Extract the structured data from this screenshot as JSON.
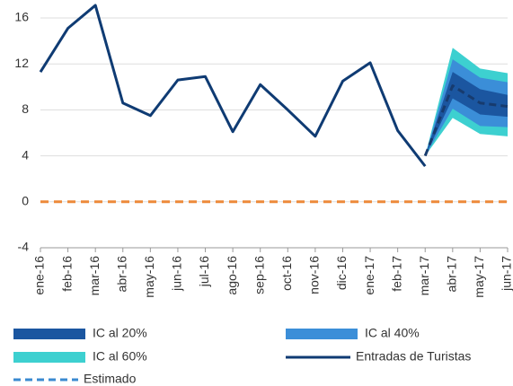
{
  "chart_data": {
    "type": "line",
    "categories": [
      "ene-16",
      "feb-16",
      "mar-16",
      "abr-16",
      "may-16",
      "jun-16",
      "jul-16",
      "ago-16",
      "sep-16",
      "oct-16",
      "nov-16",
      "dic-16",
      "ene-17",
      "feb-17",
      "mar-17",
      "abr-17",
      "may-17",
      "jun-17"
    ],
    "bands": [
      {
        "name": "IC al 60%",
        "color": "#3dd0d0",
        "lower": [
          null,
          null,
          null,
          null,
          null,
          null,
          null,
          null,
          null,
          null,
          null,
          null,
          null,
          null,
          4.0,
          7.3,
          5.9,
          5.7
        ],
        "upper": [
          null,
          null,
          null,
          null,
          null,
          null,
          null,
          null,
          null,
          null,
          null,
          null,
          null,
          null,
          4.0,
          13.4,
          11.6,
          11.2
        ]
      },
      {
        "name": "IC al 40%",
        "color": "#3b8ed8",
        "lower": [
          null,
          null,
          null,
          null,
          null,
          null,
          null,
          null,
          null,
          null,
          null,
          null,
          null,
          null,
          4.0,
          8.1,
          6.6,
          6.5
        ],
        "upper": [
          null,
          null,
          null,
          null,
          null,
          null,
          null,
          null,
          null,
          null,
          null,
          null,
          null,
          null,
          4.0,
          12.4,
          10.8,
          10.4
        ]
      },
      {
        "name": "IC al 20%",
        "color": "#1b56a0",
        "lower": [
          null,
          null,
          null,
          null,
          null,
          null,
          null,
          null,
          null,
          null,
          null,
          null,
          null,
          null,
          4.0,
          9.0,
          7.6,
          7.4
        ],
        "upper": [
          null,
          null,
          null,
          null,
          null,
          null,
          null,
          null,
          null,
          null,
          null,
          null,
          null,
          null,
          4.0,
          11.3,
          9.8,
          9.3
        ]
      }
    ],
    "series": [
      {
        "name": "Entradas de Turistas",
        "color": "#0f3b73",
        "dashed": false,
        "values": [
          11.3,
          15.1,
          17.1,
          8.6,
          7.5,
          10.6,
          10.9,
          6.1,
          10.2,
          8.0,
          5.7,
          10.5,
          12.1,
          6.2,
          3.1,
          null,
          null,
          null
        ]
      },
      {
        "name": "Estimado",
        "color": "#173b6e",
        "dashed": true,
        "values": [
          null,
          null,
          null,
          null,
          null,
          null,
          null,
          null,
          null,
          null,
          null,
          null,
          null,
          null,
          4.0,
          10.1,
          8.6,
          8.3
        ]
      }
    ],
    "hlines": [
      {
        "value": 0,
        "color": "#ed8a3a",
        "dashed": true
      }
    ],
    "ylim": [
      -4,
      17.5
    ],
    "yticks": [
      -4,
      0,
      4,
      8,
      12,
      16
    ],
    "grid": true
  }
}
